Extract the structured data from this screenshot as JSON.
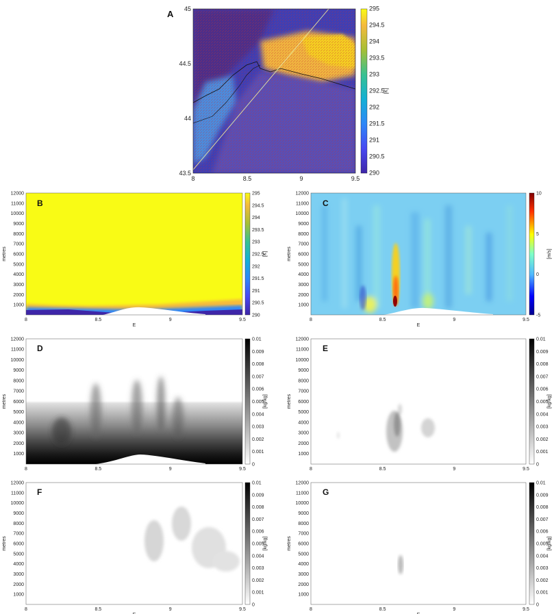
{
  "chart_data": [
    {
      "panel": "A",
      "type": "heatmap",
      "xticks": [
        "8",
        "8.5",
        "9",
        "9.5"
      ],
      "yticks": [
        "45",
        "44.5",
        "44",
        "43.5"
      ],
      "xlim": [
        8,
        9.5
      ],
      "ylim": [
        43.5,
        45
      ],
      "colorbar_ticks": [
        "295",
        "294.5",
        "294",
        "293.5",
        "293",
        "292.5",
        "292",
        "291.5",
        "291",
        "290.5",
        "290"
      ],
      "colorbar_unit": "[K]",
      "colorbar_range": [
        290,
        295
      ],
      "colormap": "parula"
    },
    {
      "panel": "B",
      "type": "heatmap",
      "ylabel": "metres",
      "xlabel": "E",
      "xticks": [
        "8",
        "8.5",
        "9",
        "9.5"
      ],
      "yticks": [
        "12000",
        "11000",
        "10000",
        "9000",
        "8000",
        "7000",
        "6000",
        "5000",
        "4000",
        "3000",
        "2000",
        "1000"
      ],
      "xlim": [
        8,
        9.5
      ],
      "ylim": [
        0,
        12000
      ],
      "colorbar_ticks": [
        "295",
        "294.5",
        "294",
        "293.5",
        "293",
        "292.5",
        "292",
        "291.5",
        "291",
        "290.5",
        "290"
      ],
      "colorbar_unit": "[K]",
      "colorbar_range": [
        290,
        295
      ],
      "colormap": "parula"
    },
    {
      "panel": "C",
      "type": "heatmap",
      "ylabel": "metres",
      "xlabel": "E",
      "xticks": [
        "8",
        "8.5",
        "9",
        "9.5"
      ],
      "yticks": [
        "12000",
        "11000",
        "10000",
        "9000",
        "8000",
        "7000",
        "6000",
        "5000",
        "4000",
        "3000",
        "2000",
        "1000"
      ],
      "xlim": [
        8,
        9.5
      ],
      "ylim": [
        0,
        12000
      ],
      "colorbar_ticks": [
        "10",
        "5",
        "0",
        "-5"
      ],
      "colorbar_unit": "[m/s]",
      "colorbar_range": [
        -5,
        10
      ],
      "colormap": "jet"
    },
    {
      "panel": "D",
      "type": "heatmap",
      "ylabel": "metres",
      "xlabel": "",
      "xticks": [
        "8",
        "8.5",
        "9",
        "9.5"
      ],
      "yticks": [
        "12000",
        "11000",
        "10000",
        "9000",
        "8000",
        "7000",
        "6000",
        "5000",
        "4000",
        "3000",
        "2000",
        "1000"
      ],
      "xlim": [
        8,
        9.5
      ],
      "ylim": [
        0,
        12000
      ],
      "colorbar_ticks": [
        "0.01",
        "0.009",
        "0.008",
        "0.007",
        "0.006",
        "0.005",
        "0.004",
        "0.003",
        "0.002",
        "0.001",
        "0"
      ],
      "colorbar_unit": "[kg/kg]",
      "colorbar_range": [
        0,
        0.01
      ],
      "colormap": "gray"
    },
    {
      "panel": "E",
      "type": "heatmap",
      "ylabel": "metres",
      "xlabel": "",
      "xticks": [
        "8",
        "8.5",
        "9",
        "9.5"
      ],
      "yticks": [
        "12000",
        "11000",
        "10000",
        "9000",
        "8000",
        "7000",
        "6000",
        "5000",
        "4000",
        "3000",
        "2000",
        "1000"
      ],
      "xlim": [
        8,
        9.5
      ],
      "ylim": [
        0,
        12000
      ],
      "colorbar_ticks": [
        "0.01",
        "0.009",
        "0.008",
        "0.007",
        "0.006",
        "0.005",
        "0.004",
        "0.003",
        "0.002",
        "0.001",
        "0"
      ],
      "colorbar_unit": "[kg/kg]",
      "colorbar_range": [
        0,
        0.01
      ],
      "colormap": "gray"
    },
    {
      "panel": "F",
      "type": "heatmap",
      "ylabel": "metres",
      "xlabel": "E",
      "xticks": [
        "8",
        "8.5",
        "9",
        "9.5"
      ],
      "yticks": [
        "12000",
        "11000",
        "10000",
        "9000",
        "8000",
        "7000",
        "6000",
        "5000",
        "4000",
        "3000",
        "2000",
        "1000"
      ],
      "xlim": [
        8,
        9.5
      ],
      "ylim": [
        0,
        12000
      ],
      "colorbar_ticks": [
        "0.01",
        "0.009",
        "0.008",
        "0.007",
        "0.006",
        "0.005",
        "0.004",
        "0.003",
        "0.002",
        "0.001",
        "0"
      ],
      "colorbar_unit": "[kg/kg]",
      "colorbar_range": [
        0,
        0.01
      ],
      "colormap": "gray"
    },
    {
      "panel": "G",
      "type": "heatmap",
      "ylabel": "metres",
      "xlabel": "E",
      "xticks": [
        "8",
        "8.5",
        "9",
        "9.5"
      ],
      "yticks": [
        "12000",
        "11000",
        "10000",
        "9000",
        "8000",
        "7000",
        "6000",
        "5000",
        "4000",
        "3000",
        "2000",
        "1000"
      ],
      "xlim": [
        8,
        9.5
      ],
      "ylim": [
        0,
        12000
      ],
      "colorbar_ticks": [
        "0.01",
        "0.009",
        "0.008",
        "0.007",
        "0.006",
        "0.005",
        "0.004",
        "0.003",
        "0.002",
        "0.001",
        "0"
      ],
      "colorbar_unit": "[kg/kg]",
      "colorbar_range": [
        0,
        0.01
      ],
      "colormap": "gray"
    }
  ]
}
